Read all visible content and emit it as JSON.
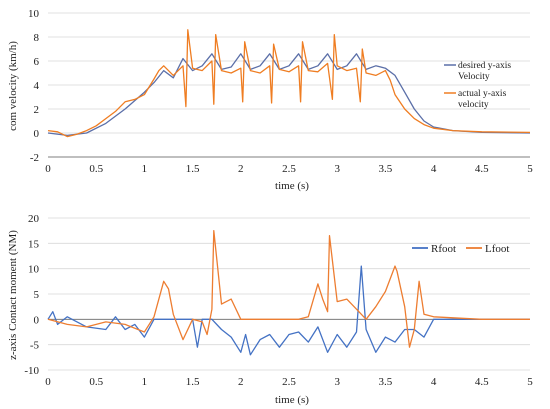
{
  "colors": {
    "desired": "#5b6fa8",
    "actual": "#ef7d22",
    "rfoot": "#4472c4",
    "lfoot": "#ed7d31",
    "grid": "#d9d9d9",
    "axis": "#7f7f7f"
  },
  "chart_data": [
    {
      "type": "line",
      "xlabel": "time (s)",
      "ylabel": "com velocity (km/h)",
      "xlim": [
        0,
        5
      ],
      "ylim": [
        -2,
        10
      ],
      "xticks": [
        "0",
        "0.5",
        "1",
        "1.5",
        "2",
        "2.5",
        "3",
        "3.5",
        "4",
        "4.5",
        "5"
      ],
      "yticks": [
        "-2",
        "0",
        "2",
        "4",
        "6",
        "8",
        "10"
      ],
      "grid": "horizontal",
      "legend_position": "right",
      "series": [
        {
          "name": "desired y-axis Velocity",
          "legend_lines": [
            "desired y-axis",
            "Velocity"
          ],
          "x": [
            0,
            0.2,
            0.4,
            0.6,
            0.8,
            1.0,
            1.1,
            1.2,
            1.3,
            1.4,
            1.5,
            1.6,
            1.7,
            1.8,
            1.9,
            2.0,
            2.1,
            2.2,
            2.3,
            2.4,
            2.5,
            2.6,
            2.7,
            2.8,
            2.9,
            3.0,
            3.1,
            3.2,
            3.3,
            3.4,
            3.5,
            3.6,
            3.7,
            3.8,
            3.9,
            4.0,
            4.2,
            4.5,
            5.0
          ],
          "y": [
            0,
            -0.2,
            0,
            0.8,
            2.0,
            3.4,
            4.2,
            5.2,
            4.6,
            6.2,
            5.2,
            5.6,
            6.6,
            5.3,
            5.5,
            6.6,
            5.3,
            5.6,
            6.6,
            5.3,
            5.6,
            6.6,
            5.3,
            5.6,
            6.6,
            5.3,
            5.6,
            6.6,
            5.3,
            5.6,
            5.4,
            4.8,
            3.4,
            2.0,
            1.0,
            0.5,
            0.2,
            0.05,
            0
          ]
        },
        {
          "name": "actual y-axis velocity",
          "legend_lines": [
            "actual y-axis",
            "velocity"
          ],
          "x": [
            0,
            0.1,
            0.2,
            0.3,
            0.4,
            0.5,
            0.6,
            0.7,
            0.8,
            0.9,
            1.0,
            1.1,
            1.15,
            1.2,
            1.3,
            1.4,
            1.43,
            1.45,
            1.5,
            1.6,
            1.7,
            1.72,
            1.74,
            1.8,
            1.9,
            2.0,
            2.02,
            2.04,
            2.1,
            2.2,
            2.3,
            2.32,
            2.34,
            2.4,
            2.5,
            2.6,
            2.62,
            2.64,
            2.7,
            2.8,
            2.9,
            2.95,
            2.97,
            3.0,
            3.1,
            3.2,
            3.24,
            3.26,
            3.3,
            3.4,
            3.5,
            3.55,
            3.6,
            3.7,
            3.8,
            3.9,
            4.0,
            4.2,
            4.5,
            5.0
          ],
          "y": [
            0.2,
            0.1,
            -0.3,
            -0.1,
            0.2,
            0.6,
            1.2,
            1.8,
            2.6,
            2.8,
            3.2,
            4.5,
            5.2,
            5.6,
            4.8,
            5.6,
            2.2,
            8.6,
            5.4,
            5.2,
            6.0,
            2.4,
            8.2,
            5.2,
            5.0,
            5.4,
            2.6,
            7.6,
            5.2,
            5.0,
            5.6,
            2.5,
            7.4,
            5.3,
            5.1,
            5.6,
            2.6,
            7.6,
            5.2,
            5.1,
            5.8,
            2.8,
            8.2,
            5.6,
            5.2,
            5.4,
            2.6,
            7.0,
            5.0,
            4.8,
            5.2,
            4.4,
            3.2,
            2.0,
            1.2,
            0.7,
            0.4,
            0.2,
            0.1,
            0.05
          ]
        }
      ]
    },
    {
      "type": "line",
      "xlabel": "time (s)",
      "ylabel": "z-axis Contact moment (NM)",
      "xlim": [
        0,
        5
      ],
      "ylim": [
        -10,
        20
      ],
      "xticks": [
        "0",
        "0.5",
        "1",
        "1.5",
        "2",
        "2.5",
        "3",
        "3.5",
        "4",
        "4.5",
        "5"
      ],
      "yticks": [
        "-10",
        "-5",
        "0",
        "5",
        "10",
        "15",
        "20"
      ],
      "grid": "horizontal",
      "legend_position": "top-right",
      "series": [
        {
          "name": "Rfoot",
          "x": [
            0,
            0.05,
            0.1,
            0.2,
            0.4,
            0.6,
            0.7,
            0.8,
            0.9,
            1.0,
            1.1,
            1.2,
            1.3,
            1.4,
            1.5,
            1.55,
            1.6,
            1.7,
            1.8,
            1.9,
            2.0,
            2.05,
            2.1,
            2.2,
            2.3,
            2.4,
            2.5,
            2.6,
            2.7,
            2.8,
            2.9,
            3.0,
            3.1,
            3.2,
            3.25,
            3.3,
            3.4,
            3.5,
            3.6,
            3.7,
            3.8,
            3.9,
            4.0,
            4.5,
            5.0
          ],
          "y": [
            0,
            1.5,
            -1.0,
            0.5,
            -1.5,
            -2.0,
            0.5,
            -2.0,
            -1.0,
            -3.5,
            0,
            0,
            0,
            0,
            0,
            -5.5,
            0,
            0,
            -2.0,
            -3.5,
            -6.5,
            -3.0,
            -7.0,
            -4.0,
            -3.0,
            -5.5,
            -3.0,
            -2.5,
            -4.5,
            -1.5,
            -6.5,
            -3.0,
            -5.5,
            -2.5,
            10.5,
            -2.0,
            -6.5,
            -3.5,
            -4.5,
            -2.0,
            -2.0,
            -3.5,
            0,
            0,
            0
          ]
        },
        {
          "name": "Lfoot",
          "x": [
            0,
            0.2,
            0.4,
            0.6,
            0.8,
            1.0,
            1.1,
            1.2,
            1.25,
            1.3,
            1.4,
            1.5,
            1.6,
            1.65,
            1.7,
            1.72,
            1.8,
            1.9,
            2.0,
            2.1,
            2.2,
            2.3,
            2.4,
            2.5,
            2.6,
            2.7,
            2.8,
            2.85,
            2.9,
            2.92,
            3.0,
            3.1,
            3.2,
            3.3,
            3.4,
            3.5,
            3.6,
            3.62,
            3.7,
            3.75,
            3.8,
            3.85,
            3.9,
            4.0,
            4.5,
            5.0
          ],
          "y": [
            0,
            -1.0,
            -1.5,
            -0.5,
            -1.0,
            -2.5,
            0.5,
            7.5,
            6.0,
            1.0,
            -4.0,
            0,
            -0.5,
            -3.0,
            2.0,
            17.5,
            3.0,
            4.0,
            0,
            0,
            0,
            0,
            0,
            0,
            0,
            0.5,
            7.0,
            4.0,
            1.5,
            16.5,
            3.5,
            4.0,
            2.0,
            0,
            2.5,
            5.5,
            10.5,
            9.5,
            2.5,
            -5.5,
            -2.0,
            7.5,
            1.0,
            0.5,
            0,
            0
          ]
        }
      ]
    }
  ]
}
